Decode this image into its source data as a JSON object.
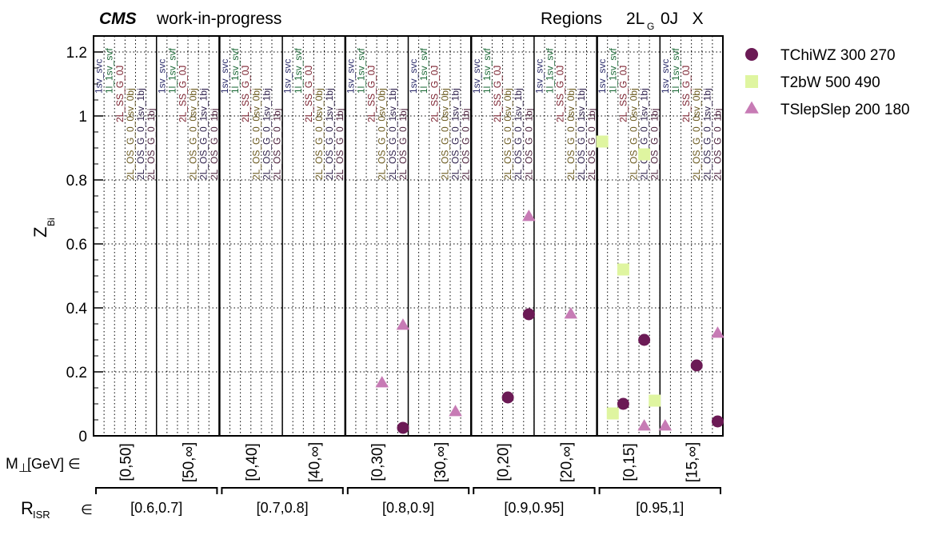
{
  "header": {
    "cms": "CMS",
    "wip": "work-in-progress",
    "regions_prefix": "Regions",
    "regions_main": "2L",
    "regions_sub": "G",
    "regions_tail": "0J   X"
  },
  "axis": {
    "ylabel_main": "Z",
    "ylabel_sub": "Bi",
    "mperp_label_pre": "M",
    "mperp_label_perp": "⊥",
    "mperp_label_post": " [GeV] ∈",
    "risr_label_main": "R",
    "risr_label_sub": "ISR",
    "risr_label_post": " ∈"
  },
  "chart_data": {
    "type": "scatter",
    "ylim": [
      0,
      1.25
    ],
    "yticks": [
      0,
      0.2,
      0.4,
      0.6,
      0.8,
      1,
      1.2
    ],
    "ytick_labels": [
      "0",
      "0.2",
      "0.4",
      "0.6",
      "0.8",
      "1",
      "1.2"
    ],
    "grid": true,
    "legend_position": "right",
    "n_bins": 60,
    "risr_bins": [
      "[0.6,0.7]",
      "[0.7,0.8]",
      "[0.8,0.9]",
      "[0.9,0.95]",
      "[0.95,1]"
    ],
    "mperp_bins": [
      "[0,50]",
      "[50,∞]",
      "[0,40]",
      "[40,∞]",
      "[0,30]",
      "[30,∞]",
      "[0,20]",
      "[20,∞]",
      "[0,15]",
      "[15,∞]"
    ],
    "mperp_bin_size": 6,
    "region_labels": [
      {
        "text": "1sv_svc",
        "color": "#2d2d6b",
        "y": 1.07
      },
      {
        "text": "1l_1sv_svf",
        "color": "#1f6b3a",
        "y": 1.07
      },
      {
        "text": "2L_SS_G_0J",
        "color": "#7a1f2d",
        "y": 0.98
      },
      {
        "text": "2L_OS_G_0_0sv_0bj",
        "color": "#6b5a1f",
        "y": 0.8
      },
      {
        "text": "2L_OS_G_0_1sv_1bj",
        "color": "#2d1f4a",
        "y": 0.8
      },
      {
        "text": "2L_OS_G_0_1bj",
        "color": "#4a1f3a",
        "y": 0.8
      }
    ],
    "series": [
      {
        "name": "TChiWZ 300 270",
        "marker": "circle",
        "color": "#6b1a55",
        "points": [
          {
            "bin": 29,
            "y": 0.025
          },
          {
            "bin": 39,
            "y": 0.12
          },
          {
            "bin": 41,
            "y": 0.38
          },
          {
            "bin": 50,
            "y": 0.1
          },
          {
            "bin": 52,
            "y": 0.3
          },
          {
            "bin": 57,
            "y": 0.22
          },
          {
            "bin": 59,
            "y": 0.045
          }
        ]
      },
      {
        "name": "T2bW 500 490",
        "marker": "square",
        "color": "#dff5a0",
        "points": [
          {
            "bin": 48,
            "y": 0.92
          },
          {
            "bin": 49,
            "y": 0.07
          },
          {
            "bin": 50,
            "y": 0.52
          },
          {
            "bin": 52,
            "y": 0.88
          },
          {
            "bin": 53,
            "y": 0.11
          }
        ]
      },
      {
        "name": "TSlepSlep 200 180",
        "marker": "triangle",
        "color": "#c77bb5",
        "points": [
          {
            "bin": 27,
            "y": 0.165
          },
          {
            "bin": 29,
            "y": 0.345
          },
          {
            "bin": 34,
            "y": 0.075
          },
          {
            "bin": 41,
            "y": 0.685
          },
          {
            "bin": 45,
            "y": 0.38
          },
          {
            "bin": 52,
            "y": 0.03
          },
          {
            "bin": 54,
            "y": 0.03
          },
          {
            "bin": 59,
            "y": 0.32
          }
        ]
      }
    ]
  }
}
